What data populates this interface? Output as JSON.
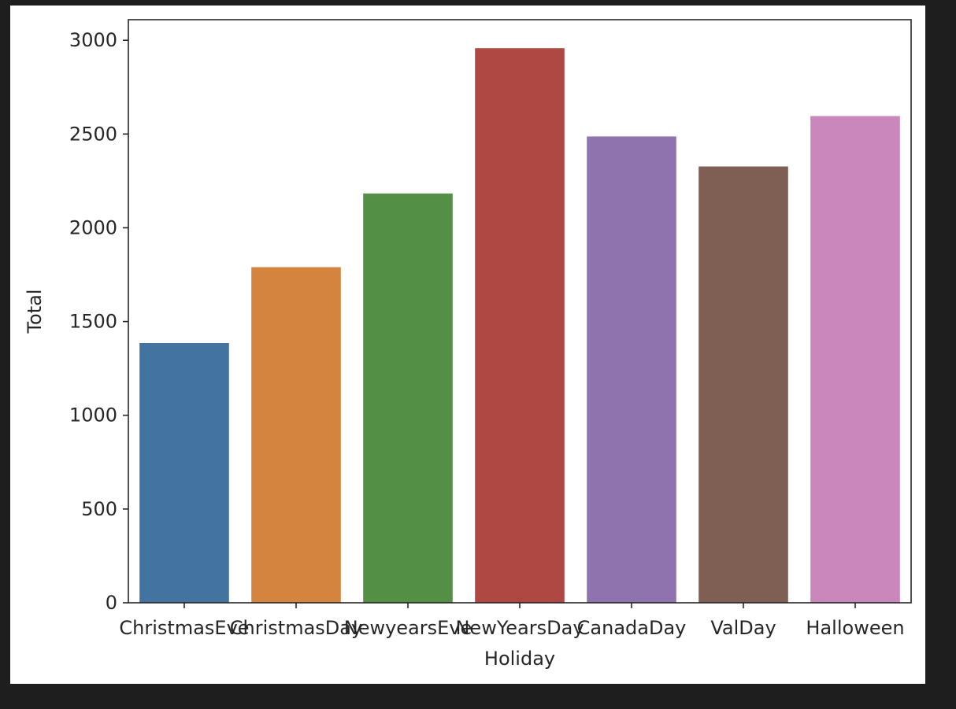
{
  "chart_data": {
    "type": "bar",
    "categories": [
      "ChristmasEve",
      "ChristmasDay",
      "NewyearsEve",
      "NewYearsDay",
      "CanadaDay",
      "ValDay",
      "Halloween"
    ],
    "values": [
      1385,
      1790,
      2183,
      2958,
      2487,
      2327,
      2596
    ],
    "colors": [
      "#4373a0",
      "#d5843f",
      "#538f44",
      "#af4843",
      "#8f73ae",
      "#7f5e53",
      "#ca87bb"
    ],
    "title": "",
    "xlabel": "Holiday",
    "ylabel": "Total",
    "ylim": [
      0,
      3110
    ],
    "yticks": [
      0,
      500,
      1000,
      1500,
      2000,
      2500,
      3000
    ],
    "grid": false
  }
}
